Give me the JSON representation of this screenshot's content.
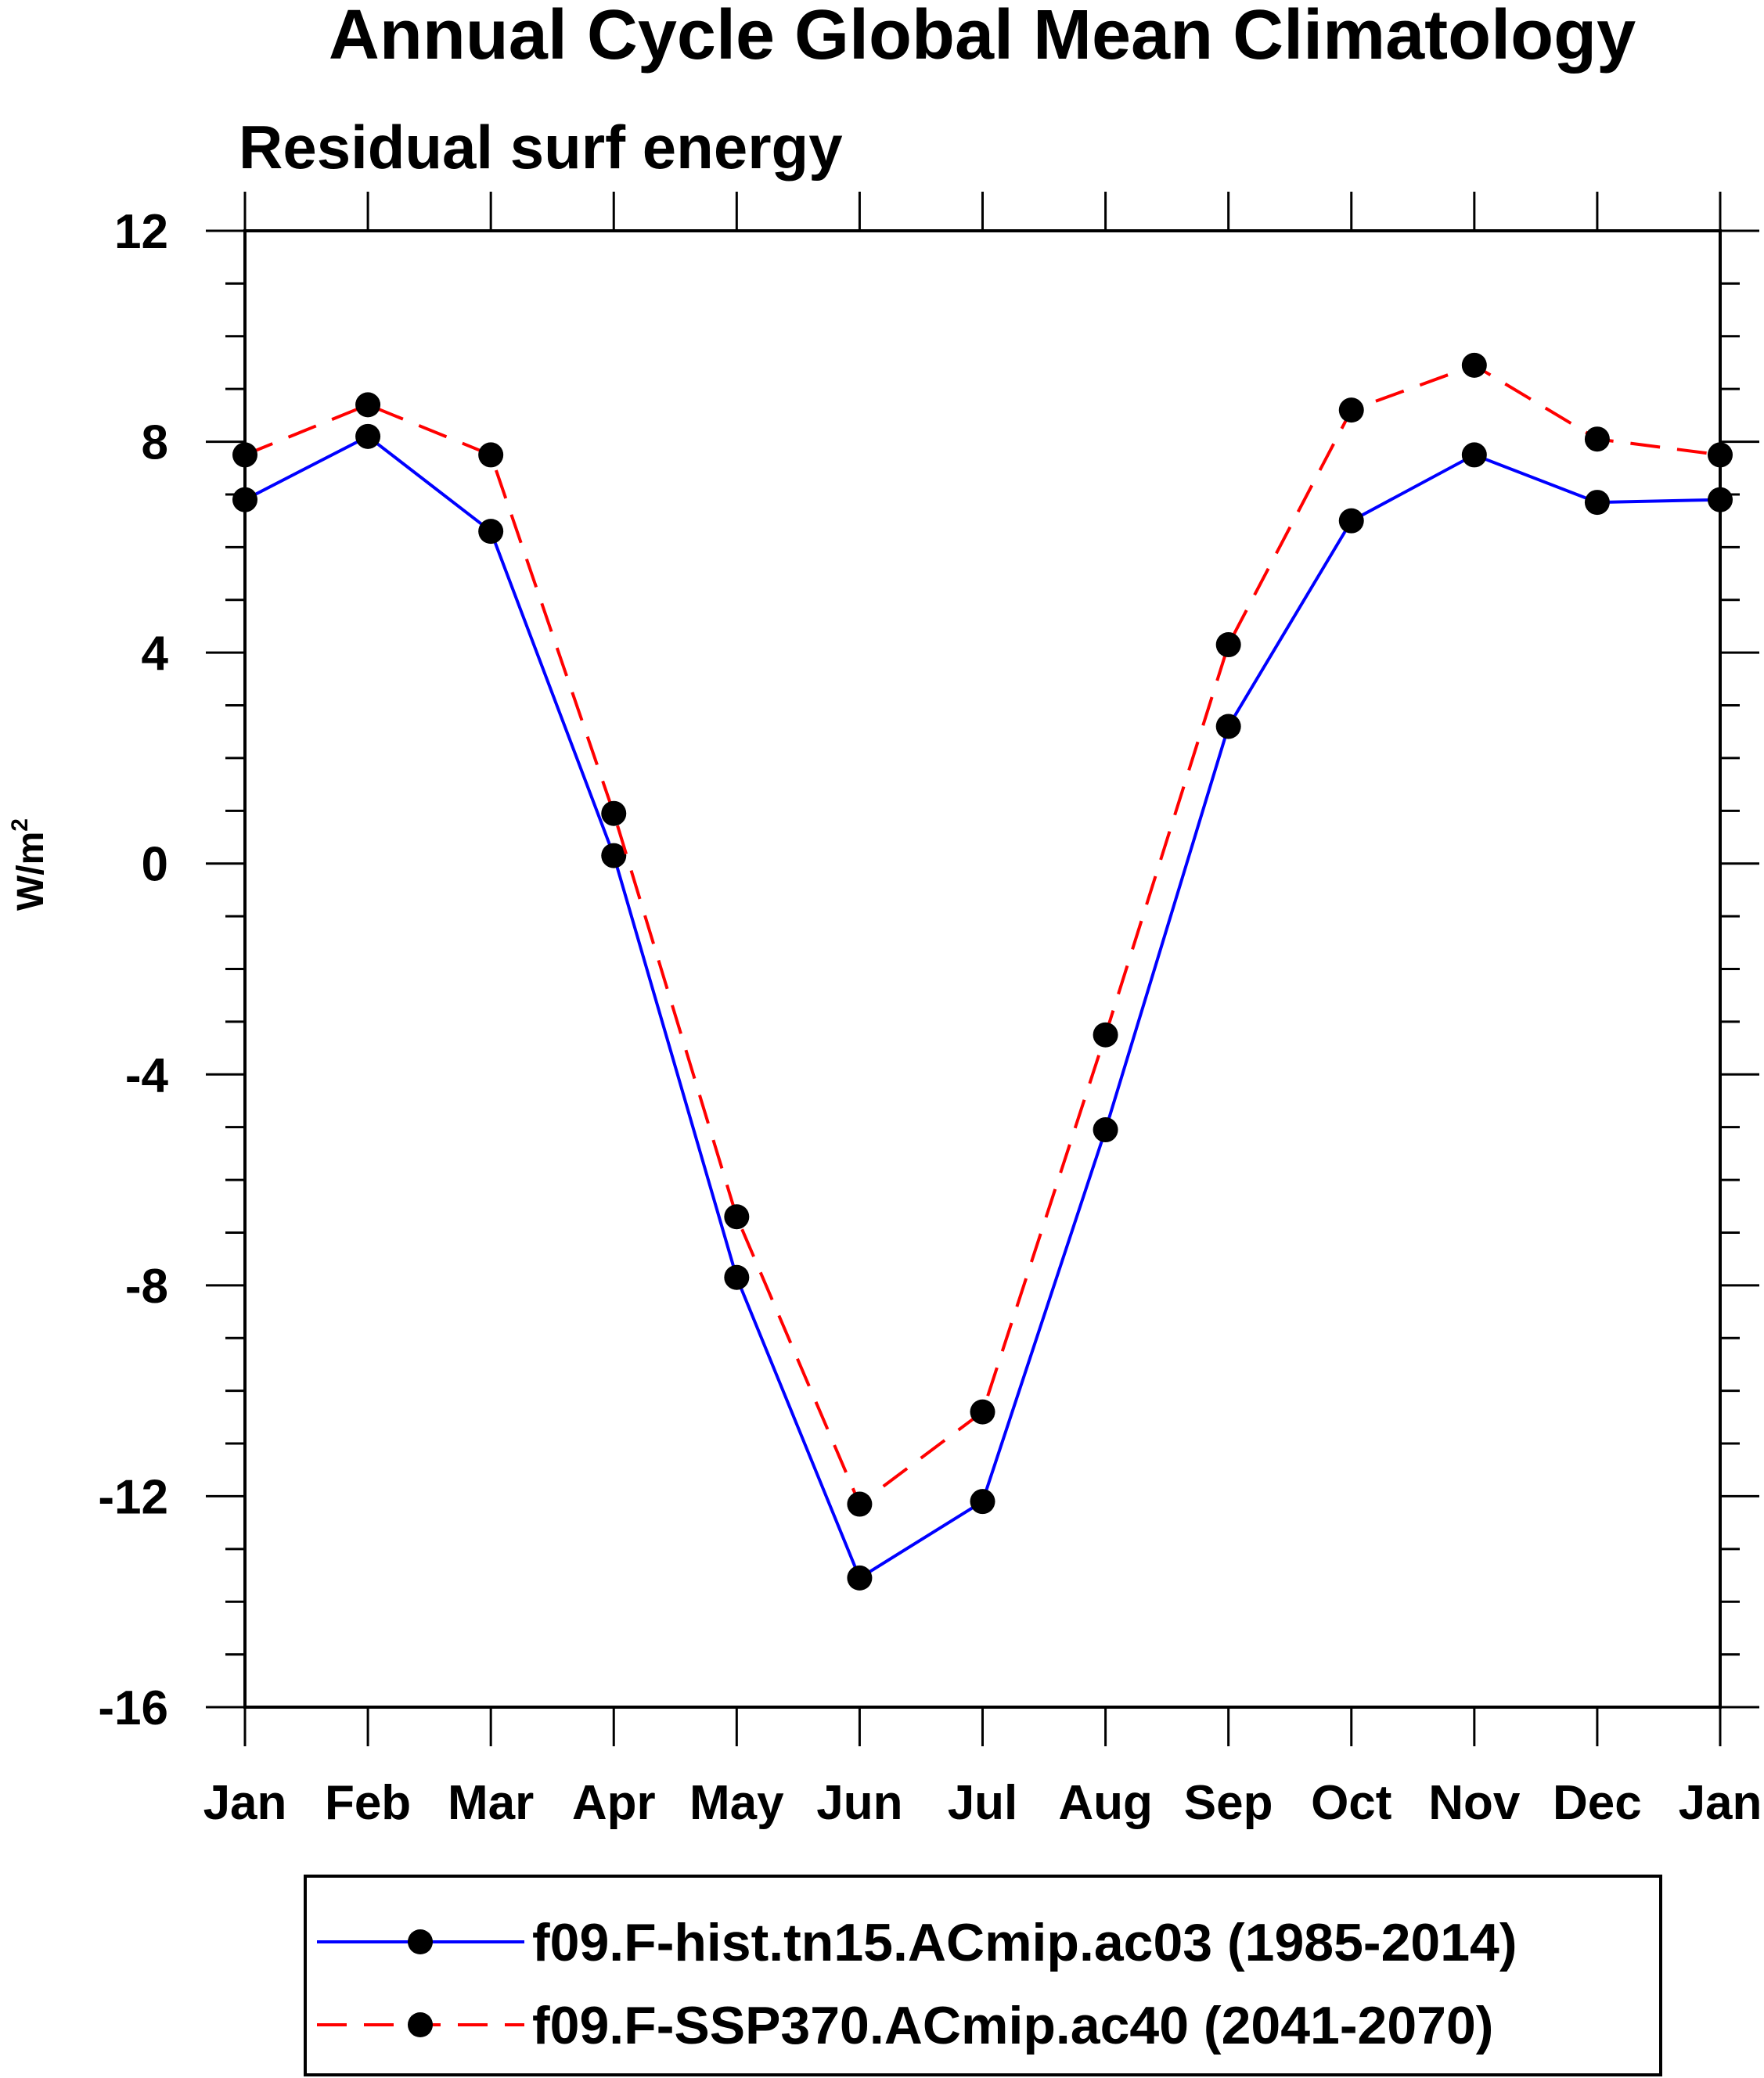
{
  "chart_data": {
    "type": "line",
    "title": "Annual Cycle Global Mean Climatology",
    "subtitle": "Residual surf energy",
    "ylabel": "W/m",
    "ylabel_sup": "2",
    "xlabel": "",
    "categories": [
      "Jan",
      "Feb",
      "Mar",
      "Apr",
      "May",
      "Jun",
      "Jul",
      "Aug",
      "Sep",
      "Oct",
      "Nov",
      "Dec",
      "Jan"
    ],
    "ylim": [
      -16,
      12
    ],
    "yticks_major": [
      -16,
      -12,
      -8,
      -4,
      0,
      4,
      8,
      12
    ],
    "yticks_minor_step": 1,
    "series": [
      {
        "name": "f09.F-hist.tn15.ACmip.ac03 (1985-2014)",
        "color": "#0000ff",
        "dash": "solid",
        "values": [
          6.9,
          8.1,
          6.3,
          0.15,
          -7.85,
          -13.55,
          -12.1,
          -5.05,
          2.6,
          6.5,
          7.75,
          6.85,
          6.9
        ]
      },
      {
        "name": "f09.F-SSP370.ACmip.ac40 (2041-2070)",
        "color": "#ff0000",
        "dash": "dashed",
        "values": [
          7.75,
          8.7,
          7.75,
          0.95,
          -6.7,
          -12.15,
          -10.4,
          -3.25,
          4.15,
          8.6,
          9.45,
          8.05,
          7.75
        ]
      }
    ],
    "marker": "filled-circle",
    "marker_color": "#000000",
    "grid": false,
    "legend_position": "bottom"
  }
}
